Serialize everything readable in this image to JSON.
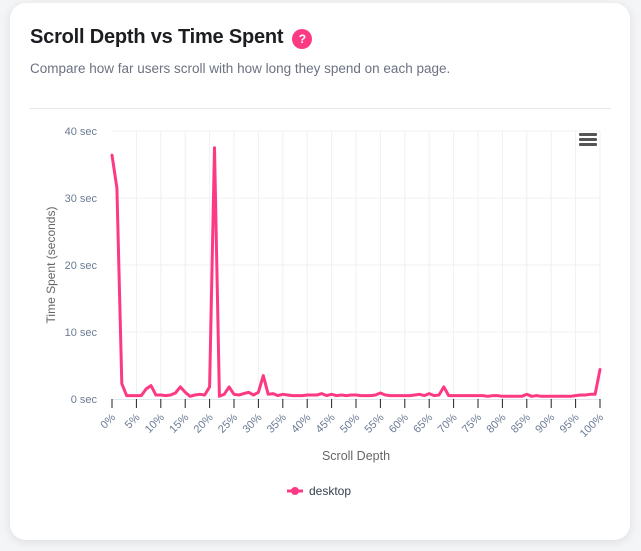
{
  "card": {
    "title": "Scroll Depth vs Time Spent",
    "help_icon": "question-mark-icon",
    "help_label": "?",
    "subtitle": "Compare how far users scroll with how long they spend on each page.",
    "menu_icon": "hamburger-menu-icon"
  },
  "colors": {
    "series": "#fc3a84",
    "grid": "#eef0f5",
    "tick_label": "#6b7b93",
    "axis_title": "#666666"
  },
  "chart_data": {
    "type": "line",
    "title": "Scroll Depth vs Time Spent",
    "xlabel": "Scroll Depth",
    "ylabel": "Time Spent (seconds)",
    "xlim": [
      0,
      100
    ],
    "ylim": [
      0,
      40
    ],
    "grid": true,
    "legend_position": "bottom-center",
    "x_ticks": [
      "0%",
      "5%",
      "10%",
      "15%",
      "20%",
      "25%",
      "30%",
      "35%",
      "40%",
      "45%",
      "50%",
      "55%",
      "60%",
      "65%",
      "70%",
      "75%",
      "80%",
      "85%",
      "90%",
      "95%",
      "100%"
    ],
    "y_ticks": [
      "0 sec",
      "10 sec",
      "20 sec",
      "30 sec",
      "40 sec"
    ],
    "y_tick_values": [
      0,
      10,
      20,
      30,
      40
    ],
    "x_tick_values": [
      0,
      5,
      10,
      15,
      20,
      25,
      30,
      35,
      40,
      45,
      50,
      55,
      60,
      65,
      70,
      75,
      80,
      85,
      90,
      95,
      100
    ],
    "series": [
      {
        "name": "desktop",
        "x": [
          0,
          1,
          2,
          3,
          4,
          5,
          6,
          7,
          8,
          9,
          10,
          11,
          12,
          13,
          14,
          15,
          16,
          17,
          18,
          19,
          20,
          21,
          22,
          23,
          24,
          25,
          26,
          27,
          28,
          29,
          30,
          31,
          32,
          33,
          34,
          35,
          36,
          37,
          38,
          39,
          40,
          41,
          42,
          43,
          44,
          45,
          46,
          47,
          48,
          49,
          50,
          51,
          52,
          53,
          54,
          55,
          56,
          57,
          58,
          59,
          60,
          61,
          62,
          63,
          64,
          65,
          66,
          67,
          68,
          69,
          70,
          71,
          72,
          73,
          74,
          75,
          76,
          77,
          78,
          79,
          80,
          81,
          82,
          83,
          84,
          85,
          86,
          87,
          88,
          89,
          90,
          91,
          92,
          93,
          94,
          95,
          96,
          97,
          98,
          99,
          100
        ],
        "values": [
          36.4,
          31.5,
          2.3,
          0.5,
          0.5,
          0.5,
          0.5,
          1.5,
          2.0,
          0.6,
          0.6,
          0.5,
          0.6,
          0.9,
          1.8,
          1.0,
          0.4,
          0.6,
          0.7,
          0.6,
          1.8,
          37.5,
          0.4,
          0.7,
          1.8,
          0.7,
          0.6,
          0.8,
          1.0,
          0.6,
          1.0,
          3.5,
          0.7,
          0.8,
          0.5,
          0.7,
          0.6,
          0.5,
          0.5,
          0.5,
          0.6,
          0.6,
          0.6,
          0.8,
          0.5,
          0.7,
          0.5,
          0.6,
          0.5,
          0.6,
          0.6,
          0.5,
          0.5,
          0.5,
          0.6,
          0.9,
          0.6,
          0.5,
          0.5,
          0.5,
          0.5,
          0.5,
          0.6,
          0.7,
          0.5,
          0.8,
          0.5,
          0.6,
          1.8,
          0.5,
          0.5,
          0.5,
          0.5,
          0.5,
          0.5,
          0.5,
          0.5,
          0.4,
          0.5,
          0.5,
          0.4,
          0.4,
          0.4,
          0.4,
          0.4,
          0.7,
          0.4,
          0.5,
          0.4,
          0.4,
          0.4,
          0.4,
          0.4,
          0.4,
          0.4,
          0.5,
          0.6,
          0.6,
          0.7,
          0.7,
          4.4
        ]
      }
    ]
  }
}
